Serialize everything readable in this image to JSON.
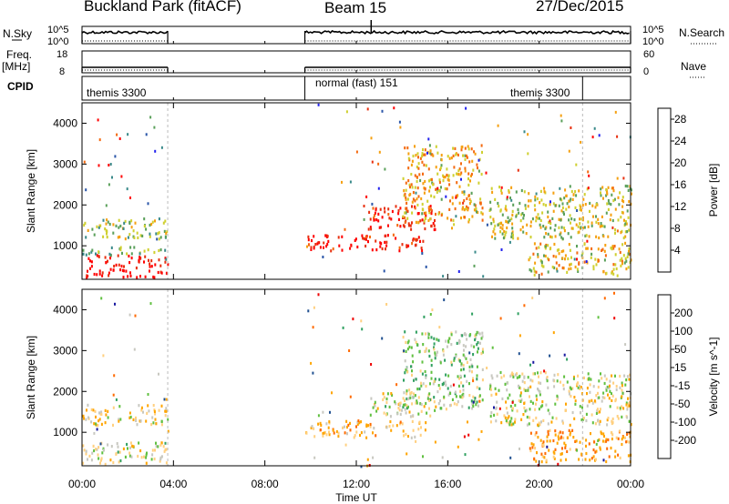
{
  "header": {
    "site": "Buckland Park (fitACF)",
    "beam": "Beam 15",
    "date": "27/Dec/2015"
  },
  "side_labels": {
    "nsky": "N.Sky",
    "freq": "Freq.",
    "freq_unit": "[MHz]",
    "cpid": "CPID",
    "nsearch": "N.Search",
    "nave": "Nave"
  },
  "strip_ticks": {
    "nsky_top": "10^5",
    "nsky_bottom": "10^0",
    "freq_top": "18",
    "freq_bottom": "8",
    "nave_top": "60",
    "nave_bottom": "0"
  },
  "cpid_labels": [
    "themis 3300",
    "normal (fast) 151",
    "themis 3300"
  ],
  "colors": {
    "power": [
      "#2222ee",
      "#2a55a8",
      "#3a8a8a",
      "#5aa05a",
      "#cfd030",
      "#f5a010",
      "#f46a10",
      "#e83010",
      "#ff0000"
    ],
    "velocity": [
      "#ee0000",
      "#ff6a00",
      "#ffa500",
      "#ffd080",
      "#c8c8c0",
      "#60c040",
      "#30a060",
      "#205090",
      "#1a1aa0"
    ]
  },
  "chart_data": [
    {
      "type": "heatmap",
      "title": "",
      "xlabel": "Time UT",
      "ylabel": "Slant Range [km]",
      "x_range_hours": [
        0,
        24
      ],
      "x_ticks": [
        "00:00",
        "04:00",
        "08:00",
        "12:00",
        "16:00",
        "20:00",
        "00:00"
      ],
      "ylim": [
        180,
        4500
      ],
      "y_ticks": [
        1000,
        2000,
        3000,
        4000
      ],
      "colorbar": {
        "label": "Power [dB]",
        "range": [
          0,
          30
        ],
        "ticks": [
          4,
          8,
          12,
          16,
          20,
          24,
          28
        ]
      },
      "data_gaps_hours": [
        [
          3.75,
          9.75
        ]
      ],
      "features": [
        {
          "t_start": 0.0,
          "t_end": 3.75,
          "range_km": [
            250,
            800
          ],
          "value_db": 29
        },
        {
          "t_start": 0.0,
          "t_end": 3.75,
          "range_km": [
            800,
            1000
          ],
          "value_db": 12
        },
        {
          "t_start": 0.0,
          "t_end": 3.75,
          "range_km": [
            1200,
            1700
          ],
          "value_db": 14
        },
        {
          "t_start": 9.75,
          "t_end": 15.0,
          "range_km": [
            900,
            1300
          ],
          "value_db": 27
        },
        {
          "t_start": 12.5,
          "t_end": 15.5,
          "range_km": [
            1400,
            2000
          ],
          "value_db": 26
        },
        {
          "t_start": 14.0,
          "t_end": 17.5,
          "range_km": [
            1600,
            3500
          ],
          "value_db": 18
        },
        {
          "t_start": 17.8,
          "t_end": 24.0,
          "range_km": [
            1200,
            2500
          ],
          "value_db": 15
        },
        {
          "t_start": 19.5,
          "t_end": 24.0,
          "range_km": [
            300,
            1100
          ],
          "value_db": 17
        }
      ]
    },
    {
      "type": "heatmap",
      "title": "",
      "xlabel": "Time UT",
      "ylabel": "Slant Range [km]",
      "x_range_hours": [
        0,
        24
      ],
      "x_ticks": [
        "00:00",
        "04:00",
        "08:00",
        "12:00",
        "16:00",
        "20:00",
        "00:00"
      ],
      "ylim": [
        180,
        4500
      ],
      "y_ticks": [
        1000,
        2000,
        3000,
        4000
      ],
      "colorbar": {
        "label": "Velocity [m s^-1]",
        "boundaries": [
          -250,
          -200,
          -100,
          -50,
          -15,
          15,
          50,
          100,
          200,
          250
        ],
        "ticks": [
          "200",
          "100",
          "50",
          "15",
          "-15",
          "-50",
          "-100",
          "-200"
        ]
      },
      "data_gaps_hours": [
        [
          3.75,
          9.75
        ]
      ],
      "features": [
        {
          "t_start": 0.0,
          "t_end": 3.75,
          "range_km": [
            250,
            800
          ],
          "value_ms": 0
        },
        {
          "t_start": 0.0,
          "t_end": 3.75,
          "range_km": [
            1200,
            1700
          ],
          "value_ms": -30
        },
        {
          "t_start": 9.75,
          "t_end": 15.0,
          "range_km": [
            900,
            1300
          ],
          "value_ms": -60
        },
        {
          "t_start": 12.5,
          "t_end": 15.5,
          "range_km": [
            1400,
            2000
          ],
          "value_ms": 0
        },
        {
          "t_start": 14.0,
          "t_end": 17.5,
          "range_km": [
            1600,
            3500
          ],
          "value_ms": 20
        },
        {
          "t_start": 17.8,
          "t_end": 24.0,
          "range_km": [
            1200,
            2500
          ],
          "value_ms": -10
        },
        {
          "t_start": 19.5,
          "t_end": 24.0,
          "range_km": [
            300,
            1100
          ],
          "value_ms": -80
        }
      ]
    }
  ]
}
